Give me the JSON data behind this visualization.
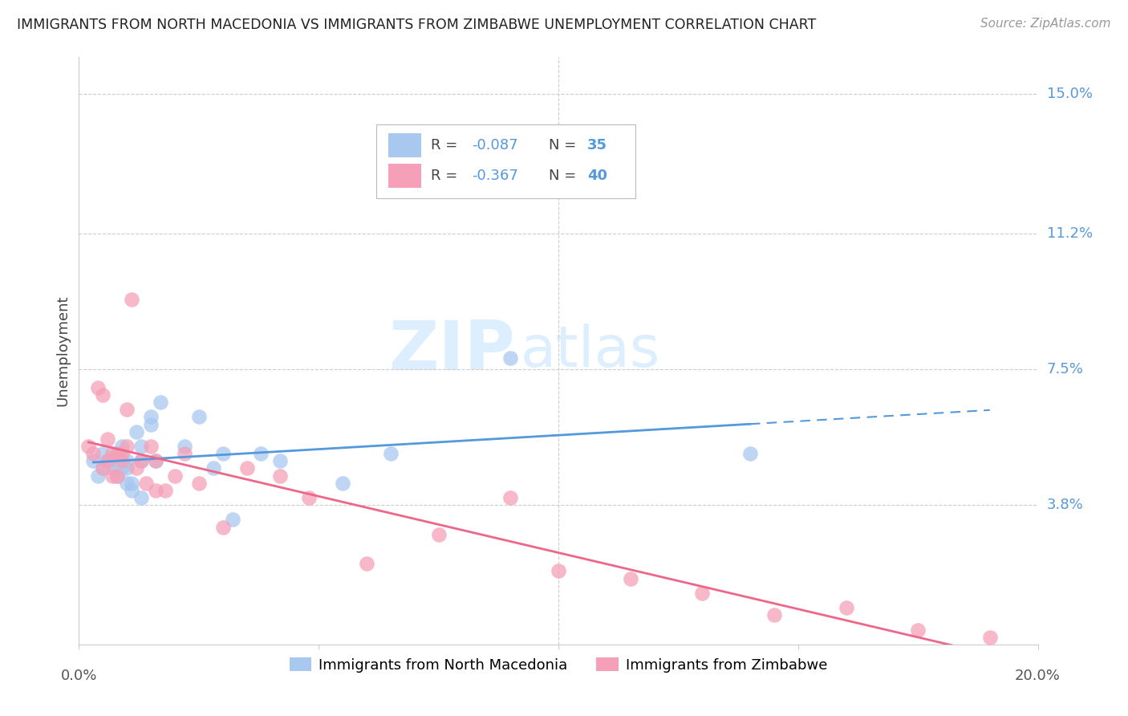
{
  "title": "IMMIGRANTS FROM NORTH MACEDONIA VS IMMIGRANTS FROM ZIMBABWE UNEMPLOYMENT CORRELATION CHART",
  "source": "Source: ZipAtlas.com",
  "ylabel": "Unemployment",
  "yticks": [
    0.0,
    0.038,
    0.075,
    0.112,
    0.15
  ],
  "ytick_labels": [
    "",
    "3.8%",
    "7.5%",
    "11.2%",
    "15.0%"
  ],
  "xlim": [
    0.0,
    0.2
  ],
  "ylim": [
    0.0,
    0.16
  ],
  "color_blue": "#a8c8f0",
  "color_pink": "#f5a0b8",
  "color_line_blue": "#5599dd",
  "color_line_pink": "#ee6688",
  "color_text_blue": "#5599dd",
  "color_text_axis": "#5599dd",
  "north_macedonia_x": [
    0.003,
    0.004,
    0.005,
    0.005,
    0.006,
    0.007,
    0.007,
    0.008,
    0.008,
    0.009,
    0.009,
    0.01,
    0.01,
    0.01,
    0.011,
    0.011,
    0.012,
    0.013,
    0.013,
    0.013,
    0.015,
    0.015,
    0.016,
    0.017,
    0.022,
    0.025,
    0.028,
    0.03,
    0.032,
    0.038,
    0.042,
    0.055,
    0.065,
    0.09,
    0.14
  ],
  "north_macedonia_y": [
    0.05,
    0.046,
    0.052,
    0.048,
    0.05,
    0.05,
    0.048,
    0.052,
    0.046,
    0.054,
    0.048,
    0.044,
    0.05,
    0.048,
    0.044,
    0.042,
    0.058,
    0.05,
    0.04,
    0.054,
    0.062,
    0.06,
    0.05,
    0.066,
    0.054,
    0.062,
    0.048,
    0.052,
    0.034,
    0.052,
    0.05,
    0.044,
    0.052,
    0.078,
    0.052
  ],
  "zimbabwe_x": [
    0.002,
    0.003,
    0.004,
    0.005,
    0.005,
    0.006,
    0.006,
    0.007,
    0.007,
    0.008,
    0.008,
    0.009,
    0.009,
    0.01,
    0.01,
    0.011,
    0.012,
    0.013,
    0.014,
    0.015,
    0.016,
    0.016,
    0.018,
    0.02,
    0.022,
    0.025,
    0.03,
    0.035,
    0.042,
    0.048,
    0.06,
    0.075,
    0.09,
    0.1,
    0.115,
    0.13,
    0.145,
    0.16,
    0.175,
    0.19
  ],
  "zimbabwe_y": [
    0.054,
    0.052,
    0.07,
    0.048,
    0.068,
    0.056,
    0.05,
    0.052,
    0.046,
    0.052,
    0.046,
    0.052,
    0.05,
    0.064,
    0.054,
    0.094,
    0.048,
    0.05,
    0.044,
    0.054,
    0.042,
    0.05,
    0.042,
    0.046,
    0.052,
    0.044,
    0.032,
    0.048,
    0.046,
    0.04,
    0.022,
    0.03,
    0.04,
    0.02,
    0.018,
    0.014,
    0.008,
    0.01,
    0.004,
    0.002
  ],
  "nm_line_x": [
    0.003,
    0.14
  ],
  "zim_line_x": [
    0.002,
    0.19
  ],
  "nm_line_x_dashed_start": 0.14,
  "nm_line_x_dashed_end": 0.19
}
